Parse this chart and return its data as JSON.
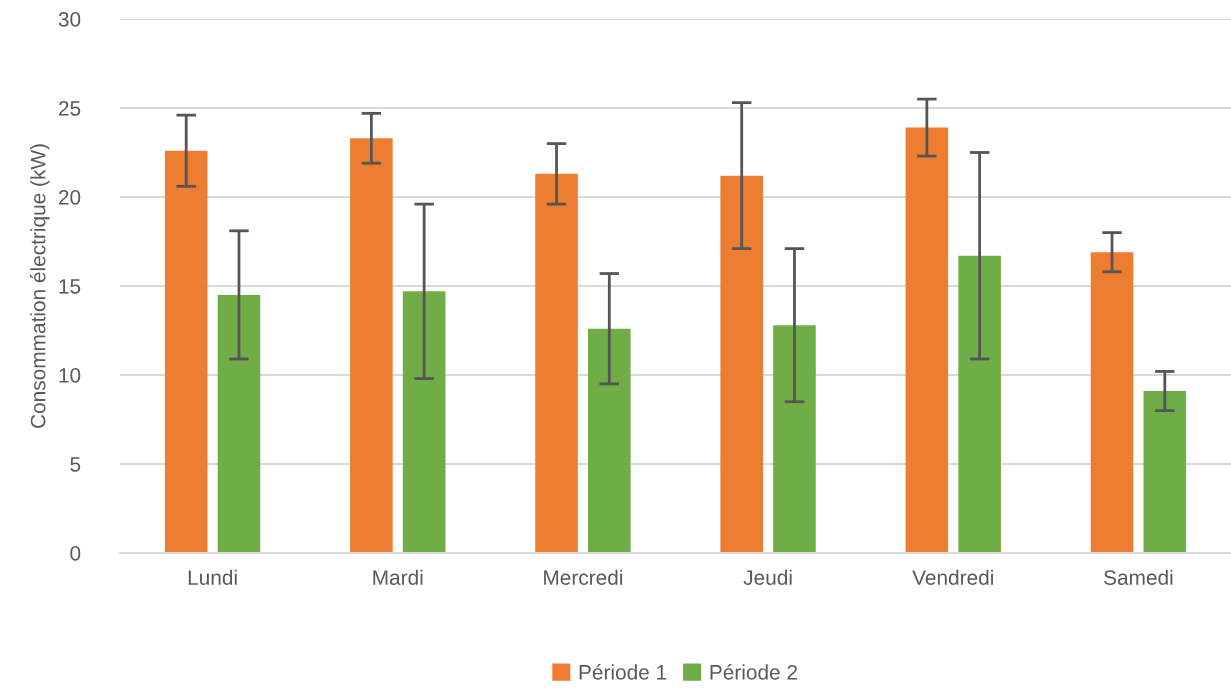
{
  "chart_data": {
    "type": "bar",
    "ylabel": "Consommation électrique (kW)",
    "categories": [
      "Lundi",
      "Mardi",
      "Mercredi",
      "Jeudi",
      "Vendredi",
      "Samedi"
    ],
    "series": [
      {
        "name": "Période 1",
        "color": "#ed7d31",
        "values": [
          22.6,
          23.3,
          21.3,
          21.2,
          23.9,
          16.9
        ],
        "errors": [
          2.0,
          1.4,
          1.7,
          4.1,
          1.6,
          1.1
        ]
      },
      {
        "name": "Période 2",
        "color": "#70ad47",
        "values": [
          14.5,
          14.7,
          12.6,
          12.8,
          16.7,
          9.1
        ],
        "errors": [
          3.6,
          4.9,
          3.1,
          4.3,
          5.8,
          1.1
        ]
      }
    ],
    "ylim": [
      0,
      30
    ],
    "yticks": [
      0,
      5,
      10,
      15,
      20,
      25,
      30
    ],
    "grid": "y",
    "legend": "bottom"
  }
}
